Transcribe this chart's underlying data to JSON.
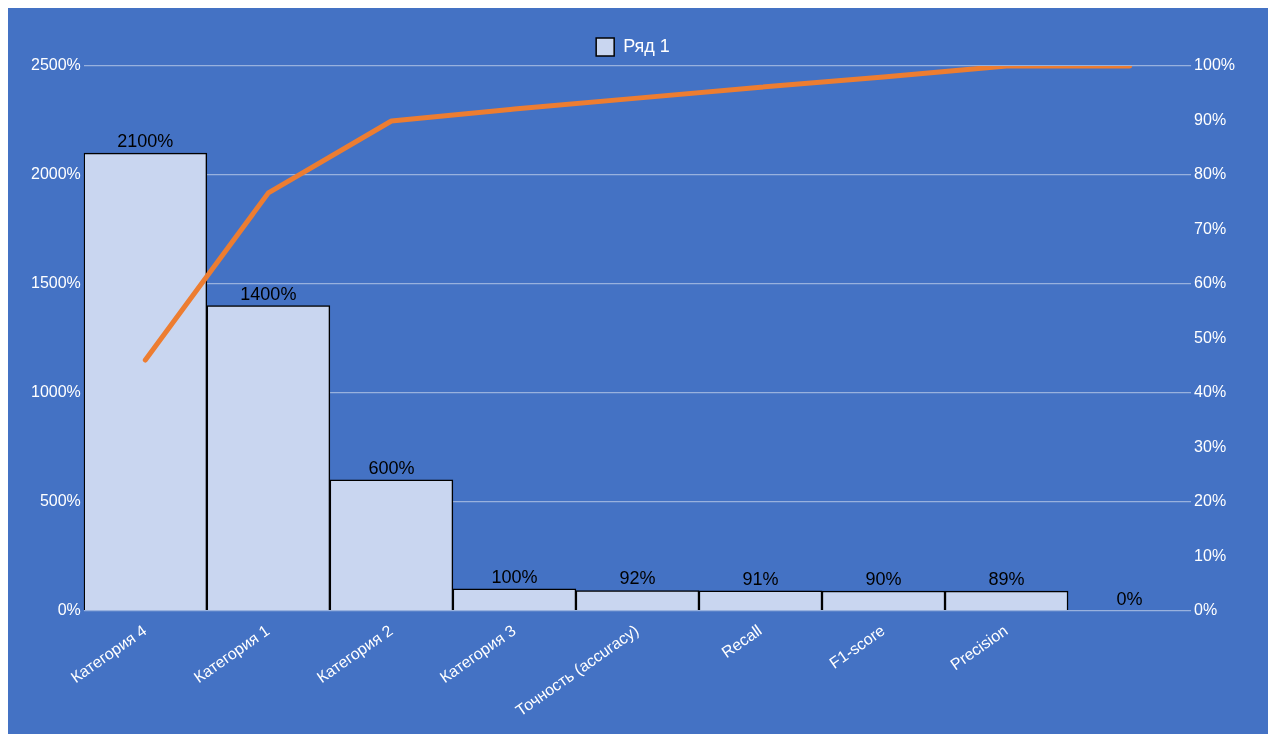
{
  "chart_data": {
    "type": "bar",
    "categories": [
      "Категория 4",
      "Категория 1",
      "Категория 2",
      "Категория 3",
      "Точность (accuracy)",
      "Recall",
      "F1-score",
      "Precision",
      null
    ],
    "series": [
      {
        "name": "Ряд 1",
        "color": "#c9d6f0",
        "values": [
          2100,
          1400,
          600,
          100,
          92,
          91,
          90,
          89,
          0
        ],
        "value_labels": [
          "2100%",
          "1400%",
          "600%",
          "100%",
          "92%",
          "91%",
          "90%",
          "89%",
          "0%"
        ]
      },
      {
        "type": "line",
        "axis": "y2",
        "color": "#ed7d31",
        "values": [
          46,
          76.7,
          89.9,
          92.1,
          94.1,
          96.1,
          98,
          100,
          100
        ]
      }
    ],
    "ylim": [
      0,
      2500
    ],
    "yticks": [
      {
        "value": 0,
        "label": "0%"
      },
      {
        "value": 500,
        "label": "500%"
      },
      {
        "value": 1000,
        "label": "1000%"
      },
      {
        "value": 1500,
        "label": "1500%"
      },
      {
        "value": 2000,
        "label": "2000%"
      },
      {
        "value": 2500,
        "label": "2500%"
      }
    ],
    "y2lim": [
      0,
      100
    ],
    "y2ticks": [
      {
        "value": 0,
        "label": "0%"
      },
      {
        "value": 10,
        "label": "10%"
      },
      {
        "value": 20,
        "label": "20%"
      },
      {
        "value": 30,
        "label": "30%"
      },
      {
        "value": 40,
        "label": "40%"
      },
      {
        "value": 50,
        "label": "50%"
      },
      {
        "value": 60,
        "label": "60%"
      },
      {
        "value": 70,
        "label": "70%"
      },
      {
        "value": 80,
        "label": "80%"
      },
      {
        "value": 90,
        "label": "90%"
      },
      {
        "value": 100,
        "label": "100%"
      }
    ],
    "grid": "y",
    "legend": "top",
    "marker": "none",
    "line_style": "solid"
  }
}
